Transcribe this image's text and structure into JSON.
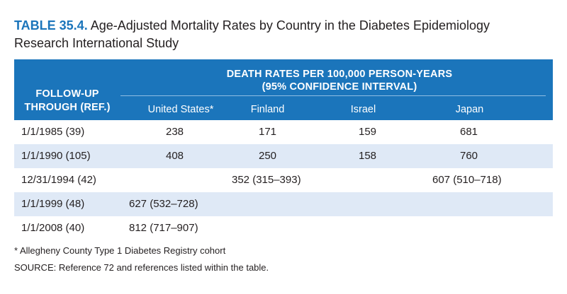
{
  "caption": {
    "number": "TABLE 35.4.",
    "title_line1": "Age-Adjusted Mortality Rates by Country in the Diabetes Epidemiology",
    "title_line2": "Research International Study"
  },
  "header": {
    "row_header_line1": "FOLLOW-UP",
    "row_header_line2": "THROUGH (REF.)",
    "span_line1": "DEATH RATES PER 100,000 PERSON-YEARS",
    "span_line2": "(95% CONFIDENCE INTERVAL)",
    "columns": [
      "United States*",
      "Finland",
      "Israel",
      "Japan"
    ]
  },
  "rows": [
    {
      "label": "1/1/1985 (39)",
      "us": "238",
      "finland": "171",
      "israel": "159",
      "japan": "681"
    },
    {
      "label": "1/1/1990 (105)",
      "us": "408",
      "finland": "250",
      "israel": "158",
      "japan": "760"
    },
    {
      "label": "12/31/1994 (42)",
      "us": "",
      "finland": "352 (315–393)",
      "israel": "",
      "japan": "607 (510–718)"
    },
    {
      "label": "1/1/1999 (48)",
      "us": "627 (532–728)",
      "finland": "",
      "israel": "",
      "japan": ""
    },
    {
      "label": "1/1/2008 (40)",
      "us": "812 (717–907)",
      "finland": "",
      "israel": "",
      "japan": ""
    }
  ],
  "footnotes": {
    "note": "* Allegheny County Type 1 Diabetes Registry cohort",
    "source": "SOURCE: Reference 72 and references listed within the table."
  },
  "colors": {
    "header_blue": "#1b75bb",
    "row_shade": "#dfe9f6"
  }
}
